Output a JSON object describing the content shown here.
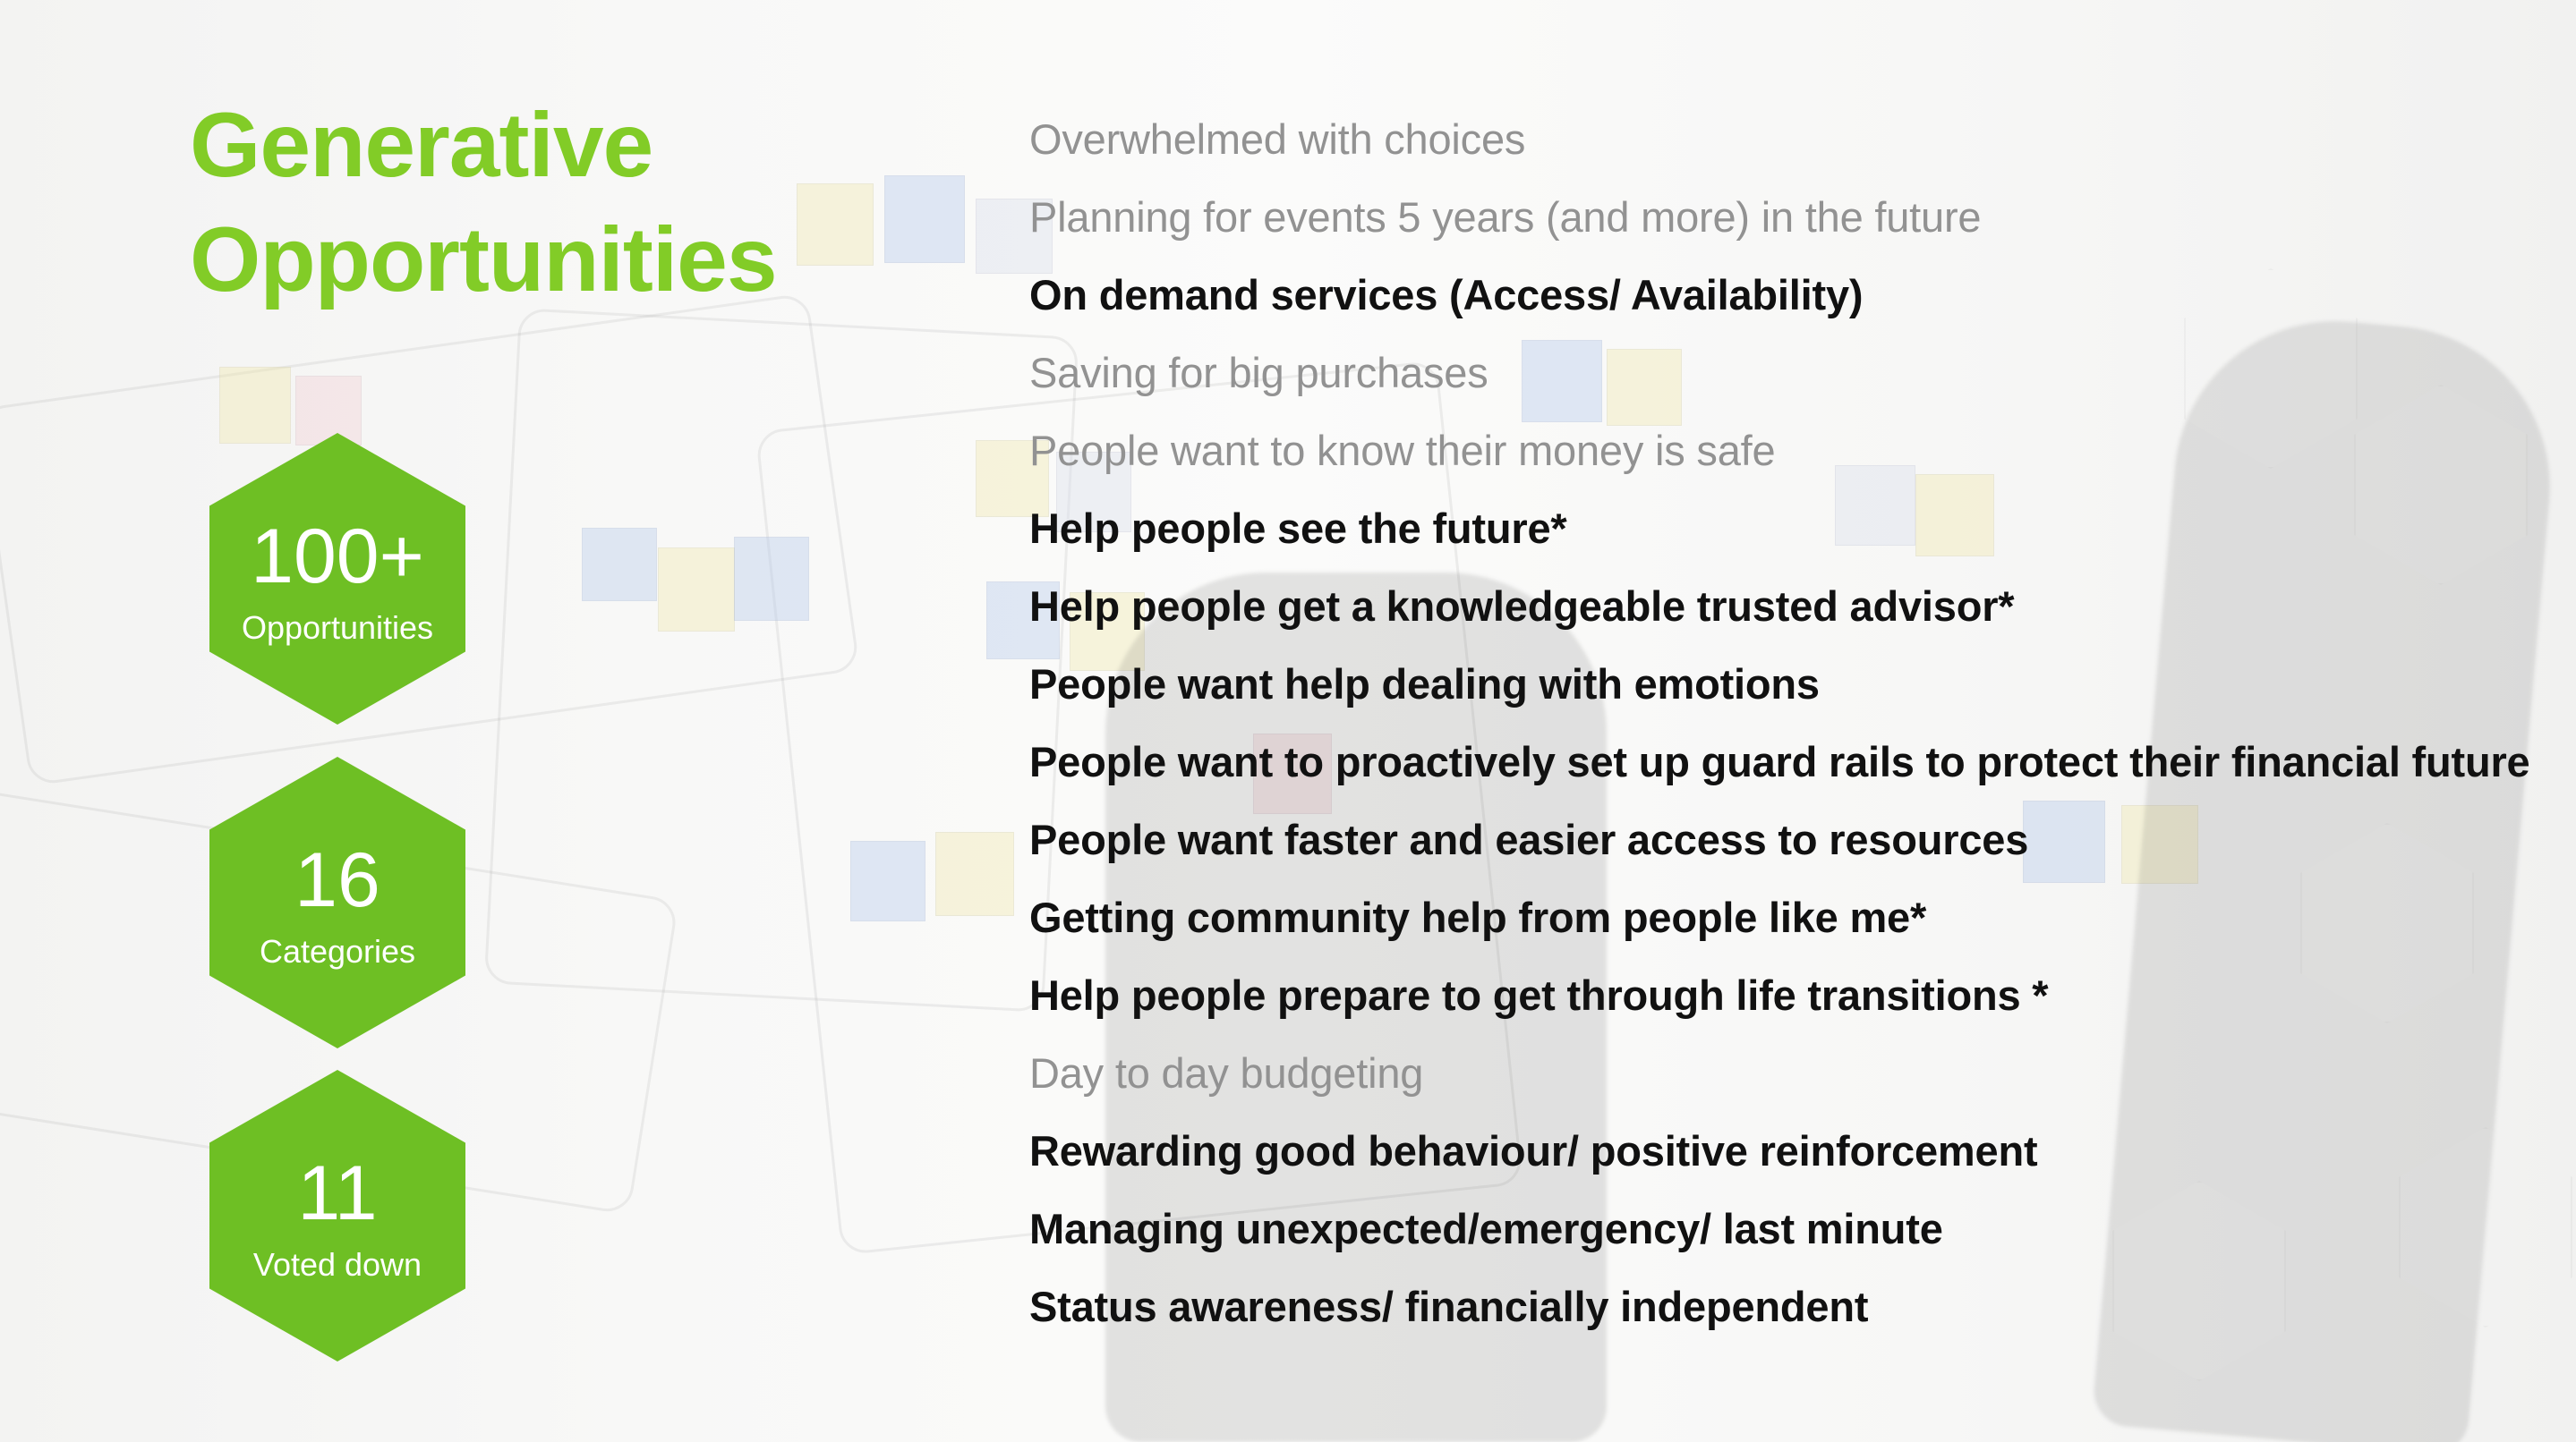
{
  "slide": {
    "title": "Generative Opportunities",
    "accent_color": "#82cc27",
    "hex_color": "#6ebf24"
  },
  "stats": [
    {
      "value": "100+",
      "label": "Opportunities"
    },
    {
      "value": "16",
      "label": "Categories"
    },
    {
      "value": "11",
      "label": "Voted down"
    }
  ],
  "opportunities": [
    {
      "text": "Overwhelmed with choices",
      "emphasis": "faded"
    },
    {
      "text": "Planning for events 5 years (and more) in the future",
      "emphasis": "faded"
    },
    {
      "text": "On demand services (Access/ Availability)",
      "emphasis": "strong"
    },
    {
      "text": "Saving for big purchases",
      "emphasis": "faded"
    },
    {
      "text": "People want to know their money is safe",
      "emphasis": "faded"
    },
    {
      "text": "Help people see the future*",
      "emphasis": "strong"
    },
    {
      "text": "Help people get a knowledgeable trusted advisor*",
      "emphasis": "strong"
    },
    {
      "text": "People want help dealing with emotions",
      "emphasis": "strong"
    },
    {
      "text": "People want to proactively set up guard rails to protect their financial future",
      "emphasis": "strong"
    },
    {
      "text": "People want faster and easier access to resources",
      "emphasis": "strong"
    },
    {
      "text": "Getting community help from people like me*",
      "emphasis": "strong"
    },
    {
      "text": "Help people prepare to get through life transitions *",
      "emphasis": "strong"
    },
    {
      "text": "Day to day budgeting",
      "emphasis": "faded"
    },
    {
      "text": "Rewarding good behaviour/ positive reinforcement",
      "emphasis": "strong"
    },
    {
      "text": "Managing unexpected/emergency/ last minute",
      "emphasis": "strong"
    },
    {
      "text": "Status awareness/ financially independent",
      "emphasis": "strong"
    }
  ]
}
